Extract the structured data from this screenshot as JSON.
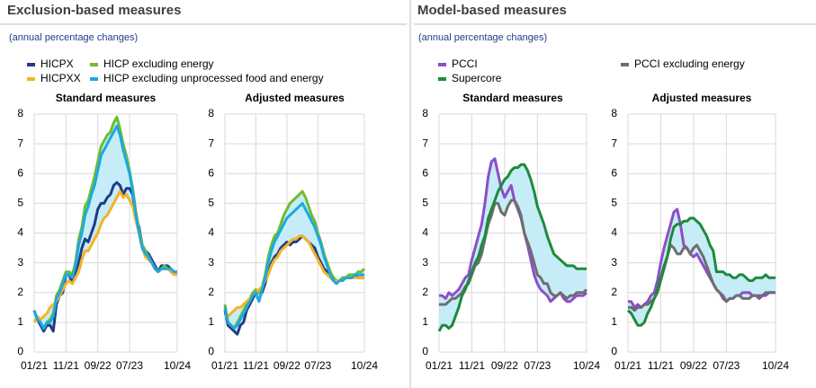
{
  "sections": [
    {
      "title": "Exclusion-based measures",
      "subtitle": "(annual percentage changes)"
    },
    {
      "title": "Model-based measures",
      "subtitle": "(annual percentage changes)"
    }
  ],
  "chart_data": [
    {
      "type": "line",
      "title": "Standard measures",
      "band_color": "#c6ecf8",
      "grid": true,
      "categories": [
        "01/21",
        null,
        null,
        null,
        null,
        null,
        null,
        null,
        null,
        null,
        "11/21",
        null,
        null,
        null,
        null,
        null,
        null,
        null,
        null,
        null,
        "09/22",
        null,
        null,
        null,
        null,
        null,
        null,
        null,
        null,
        null,
        "07/23",
        null,
        null,
        null,
        null,
        null,
        null,
        null,
        null,
        null,
        null,
        null,
        null,
        null,
        null,
        "10/24"
      ],
      "ylim": [
        0,
        8
      ],
      "yticks": [
        0,
        1,
        2,
        3,
        4,
        5,
        6,
        7,
        8
      ],
      "series": [
        {
          "name": "HICPX",
          "color": "#1f3c88",
          "values": [
            1.4,
            1.1,
            0.9,
            0.7,
            0.9,
            0.9,
            0.7,
            1.6,
            1.9,
            2.0,
            2.6,
            2.6,
            2.3,
            2.7,
            3.0,
            3.5,
            3.8,
            3.7,
            4.0,
            4.3,
            4.8,
            5.0,
            5.0,
            5.2,
            5.3,
            5.6,
            5.7,
            5.6,
            5.3,
            5.5,
            5.5,
            5.3,
            4.5,
            4.2,
            3.6,
            3.4,
            3.3,
            3.1,
            2.9,
            2.7,
            2.9,
            2.9,
            2.9,
            2.8,
            2.7,
            2.7
          ]
        },
        {
          "name": "HICP excluding energy",
          "color": "#6dbe2d",
          "values": [
            1.4,
            1.1,
            1.0,
            0.8,
            1.0,
            1.1,
            1.3,
            1.9,
            2.1,
            2.4,
            2.7,
            2.7,
            2.6,
            3.0,
            3.8,
            4.2,
            4.9,
            5.1,
            5.5,
            5.9,
            6.4,
            6.9,
            7.1,
            7.3,
            7.4,
            7.7,
            7.9,
            7.5,
            7.0,
            6.6,
            6.1,
            5.5,
            4.7,
            4.1,
            3.6,
            3.4,
            3.2,
            3.0,
            2.8,
            2.7,
            2.8,
            2.9,
            2.8,
            2.8,
            2.7,
            2.7
          ]
        },
        {
          "name": "HICPXX",
          "color": "#f5b324",
          "values": [
            1.0,
            1.2,
            1.1,
            1.2,
            1.3,
            1.5,
            1.6,
            1.7,
            1.9,
            2.1,
            2.3,
            2.4,
            2.3,
            2.5,
            2.7,
            3.1,
            3.4,
            3.4,
            3.6,
            3.8,
            4.0,
            4.3,
            4.5,
            4.6,
            4.8,
            5.0,
            5.2,
            5.4,
            5.2,
            5.3,
            5.1,
            4.9,
            4.4,
            4.0,
            3.5,
            3.2,
            3.1,
            3.0,
            2.8,
            2.7,
            2.8,
            2.8,
            2.8,
            2.7,
            2.6,
            2.6
          ]
        },
        {
          "name": "HICP excluding unprocessed food and energy",
          "color": "#1ea8e0",
          "values": [
            1.4,
            1.1,
            1.0,
            0.8,
            1.0,
            1.0,
            1.2,
            1.8,
            2.0,
            2.3,
            2.6,
            2.6,
            2.5,
            2.9,
            3.6,
            4.0,
            4.6,
            4.9,
            5.3,
            5.6,
            6.1,
            6.6,
            6.8,
            7.0,
            7.2,
            7.4,
            7.6,
            7.3,
            6.8,
            6.4,
            6.0,
            5.4,
            4.6,
            4.0,
            3.5,
            3.3,
            3.2,
            3.0,
            2.8,
            2.7,
            2.8,
            2.8,
            2.8,
            2.8,
            2.7,
            2.7
          ]
        }
      ]
    },
    {
      "type": "line",
      "title": "Adjusted measures",
      "band_color": "#c6ecf8",
      "grid": true,
      "categories": [
        "01/21",
        null,
        null,
        null,
        null,
        null,
        null,
        null,
        null,
        null,
        "11/21",
        null,
        null,
        null,
        null,
        null,
        null,
        null,
        null,
        null,
        "09/22",
        null,
        null,
        null,
        null,
        null,
        null,
        null,
        null,
        null,
        "07/23",
        null,
        null,
        null,
        null,
        null,
        null,
        null,
        null,
        null,
        null,
        null,
        null,
        null,
        null,
        "10/24"
      ],
      "ylim": [
        0,
        8
      ],
      "yticks": [
        0,
        1,
        2,
        3,
        4,
        5,
        6,
        7,
        8
      ],
      "series": [
        {
          "color": "#1f3c88",
          "values": [
            1.4,
            0.9,
            0.8,
            0.7,
            0.6,
            0.9,
            1.0,
            1.4,
            1.6,
            1.8,
            2.0,
            2.0,
            2.0,
            2.3,
            2.7,
            3.0,
            3.2,
            3.3,
            3.5,
            3.6,
            3.7,
            3.6,
            3.7,
            3.7,
            3.8,
            3.9,
            3.8,
            3.7,
            3.6,
            3.5,
            3.2,
            3.0,
            2.8,
            2.7,
            2.6,
            2.5,
            2.4,
            2.4,
            2.5,
            2.5,
            2.5,
            2.5,
            2.6,
            2.5,
            2.5,
            2.5
          ]
        },
        {
          "color": "#6dbe2d",
          "values": [
            1.6,
            1.0,
            0.9,
            0.8,
            1.0,
            1.2,
            1.4,
            1.6,
            1.8,
            2.0,
            2.1,
            2.0,
            2.2,
            2.6,
            3.2,
            3.6,
            3.9,
            4.0,
            4.3,
            4.6,
            4.8,
            5.0,
            5.1,
            5.2,
            5.3,
            5.4,
            5.2,
            4.9,
            4.6,
            4.4,
            4.0,
            3.7,
            3.3,
            3.0,
            2.7,
            2.5,
            2.4,
            2.4,
            2.5,
            2.5,
            2.6,
            2.6,
            2.6,
            2.7,
            2.7,
            2.8
          ]
        },
        {
          "color": "#f5b324",
          "values": [
            1.2,
            1.2,
            1.3,
            1.4,
            1.5,
            1.5,
            1.6,
            1.7,
            1.8,
            1.9,
            2.0,
            2.1,
            2.2,
            2.4,
            2.6,
            2.9,
            3.1,
            3.2,
            3.4,
            3.5,
            3.6,
            3.7,
            3.8,
            3.8,
            3.9,
            3.9,
            3.8,
            3.7,
            3.5,
            3.3,
            3.1,
            2.9,
            2.7,
            2.6,
            2.5,
            2.4,
            2.4,
            2.4,
            2.4,
            2.5,
            2.5,
            2.5,
            2.5,
            2.5,
            2.5,
            2.5
          ]
        },
        {
          "color": "#1ea8e0",
          "values": [
            1.5,
            1.0,
            0.9,
            0.8,
            0.9,
            1.1,
            1.3,
            1.5,
            1.7,
            1.9,
            2.0,
            1.7,
            2.1,
            2.5,
            3.0,
            3.4,
            3.7,
            3.9,
            4.1,
            4.3,
            4.5,
            4.6,
            4.7,
            4.8,
            4.9,
            5.0,
            4.8,
            4.6,
            4.4,
            4.2,
            3.9,
            3.6,
            3.2,
            2.9,
            2.6,
            2.4,
            2.3,
            2.4,
            2.4,
            2.5,
            2.5,
            2.5,
            2.6,
            2.6,
            2.6,
            2.6
          ]
        }
      ]
    },
    {
      "type": "line",
      "title": "Standard measures",
      "band_color": "#c6ecf8",
      "grid": true,
      "categories": [
        "01/21",
        null,
        null,
        null,
        null,
        null,
        null,
        null,
        null,
        null,
        "11/21",
        null,
        null,
        null,
        null,
        null,
        null,
        null,
        null,
        null,
        "09/22",
        null,
        null,
        null,
        null,
        null,
        null,
        null,
        null,
        null,
        "07/23",
        null,
        null,
        null,
        null,
        null,
        null,
        null,
        null,
        null,
        null,
        null,
        null,
        null,
        null,
        "10/24"
      ],
      "ylim": [
        0,
        8
      ],
      "yticks": [
        0,
        1,
        2,
        3,
        4,
        5,
        6,
        7,
        8
      ],
      "series": [
        {
          "name": "PCCI",
          "color": "#8b4fc8",
          "values": [
            1.9,
            1.9,
            1.8,
            2.0,
            1.9,
            2.0,
            2.1,
            2.3,
            2.5,
            2.6,
            3.1,
            3.5,
            3.9,
            4.3,
            5.0,
            5.9,
            6.4,
            6.5,
            6.0,
            5.5,
            5.2,
            5.4,
            5.6,
            5.1,
            4.8,
            4.5,
            4.0,
            3.6,
            3.1,
            2.6,
            2.3,
            2.1,
            2.0,
            1.9,
            1.7,
            1.8,
            1.9,
            2.0,
            1.8,
            1.7,
            1.7,
            1.8,
            1.9,
            1.9,
            1.9,
            2.0
          ]
        },
        {
          "name": "PCCI excluding energy",
          "color": "#6e6e6e",
          "values": [
            1.6,
            1.6,
            1.6,
            1.7,
            1.8,
            1.8,
            1.9,
            2.0,
            2.2,
            2.3,
            2.6,
            2.9,
            3.0,
            3.3,
            3.8,
            4.3,
            4.6,
            5.0,
            5.0,
            4.7,
            4.6,
            4.9,
            5.1,
            5.1,
            4.9,
            4.6,
            4.0,
            3.7,
            3.4,
            3.0,
            2.6,
            2.5,
            2.3,
            2.3,
            2.0,
            1.9,
            1.9,
            2.0,
            1.9,
            1.8,
            1.9,
            1.9,
            2.0,
            2.0,
            2.0,
            2.1
          ]
        },
        {
          "name": "Supercore",
          "color": "#1e8a3c",
          "values": [
            0.7,
            0.9,
            0.9,
            0.8,
            0.9,
            1.2,
            1.5,
            1.9,
            2.1,
            2.4,
            2.7,
            3.0,
            3.2,
            3.6,
            3.9,
            4.5,
            4.8,
            5.1,
            5.4,
            5.6,
            5.8,
            5.9,
            6.1,
            6.2,
            6.2,
            6.3,
            6.3,
            6.1,
            5.8,
            5.4,
            4.9,
            4.6,
            4.3,
            3.9,
            3.6,
            3.3,
            3.2,
            3.1,
            3.0,
            2.9,
            2.9,
            2.9,
            2.8,
            2.8,
            2.8,
            2.8
          ]
        }
      ]
    },
    {
      "type": "line",
      "title": "Adjusted measures",
      "band_color": "#c6ecf8",
      "grid": true,
      "categories": [
        "01/21",
        null,
        null,
        null,
        null,
        null,
        null,
        null,
        null,
        null,
        "11/21",
        null,
        null,
        null,
        null,
        null,
        null,
        null,
        null,
        null,
        "09/22",
        null,
        null,
        null,
        null,
        null,
        null,
        null,
        null,
        null,
        "07/23",
        null,
        null,
        null,
        null,
        null,
        null,
        null,
        null,
        null,
        null,
        null,
        null,
        null,
        null,
        "10/24"
      ],
      "ylim": [
        0,
        8
      ],
      "yticks": [
        0,
        1,
        2,
        3,
        4,
        5,
        6,
        7,
        8
      ],
      "series": [
        {
          "color": "#8b4fc8",
          "values": [
            1.7,
            1.7,
            1.5,
            1.6,
            1.5,
            1.6,
            1.7,
            1.9,
            2.0,
            2.4,
            3.0,
            3.5,
            3.9,
            4.3,
            4.7,
            4.8,
            4.3,
            3.6,
            3.5,
            3.3,
            3.2,
            3.3,
            3.1,
            2.9,
            2.7,
            2.5,
            2.3,
            2.1,
            2.0,
            1.9,
            1.7,
            1.8,
            1.8,
            1.9,
            1.9,
            2.0,
            2.0,
            2.0,
            1.9,
            1.9,
            1.8,
            1.9,
            1.9,
            2.0,
            2.0,
            2.0
          ]
        },
        {
          "color": "#6e6e6e",
          "values": [
            1.5,
            1.5,
            1.4,
            1.5,
            1.5,
            1.6,
            1.6,
            1.7,
            1.8,
            2.0,
            2.4,
            2.8,
            3.2,
            3.6,
            3.5,
            3.3,
            3.3,
            3.5,
            3.5,
            3.3,
            3.5,
            3.6,
            3.4,
            3.2,
            2.9,
            2.6,
            2.3,
            2.1,
            2.0,
            1.8,
            1.7,
            1.8,
            1.8,
            1.9,
            1.9,
            1.8,
            1.8,
            1.8,
            1.9,
            1.9,
            1.9,
            1.9,
            2.0,
            2.0,
            2.0,
            2.0
          ]
        },
        {
          "color": "#1e8a3c",
          "values": [
            1.4,
            1.3,
            1.1,
            0.9,
            0.9,
            1.0,
            1.3,
            1.5,
            1.8,
            2.1,
            2.5,
            2.9,
            3.2,
            3.8,
            4.2,
            4.3,
            4.3,
            4.4,
            4.4,
            4.5,
            4.5,
            4.4,
            4.3,
            4.1,
            3.9,
            3.6,
            3.4,
            2.7,
            2.7,
            2.7,
            2.6,
            2.6,
            2.5,
            2.5,
            2.6,
            2.6,
            2.5,
            2.4,
            2.4,
            2.5,
            2.5,
            2.5,
            2.6,
            2.5,
            2.5,
            2.5
          ]
        }
      ]
    }
  ]
}
